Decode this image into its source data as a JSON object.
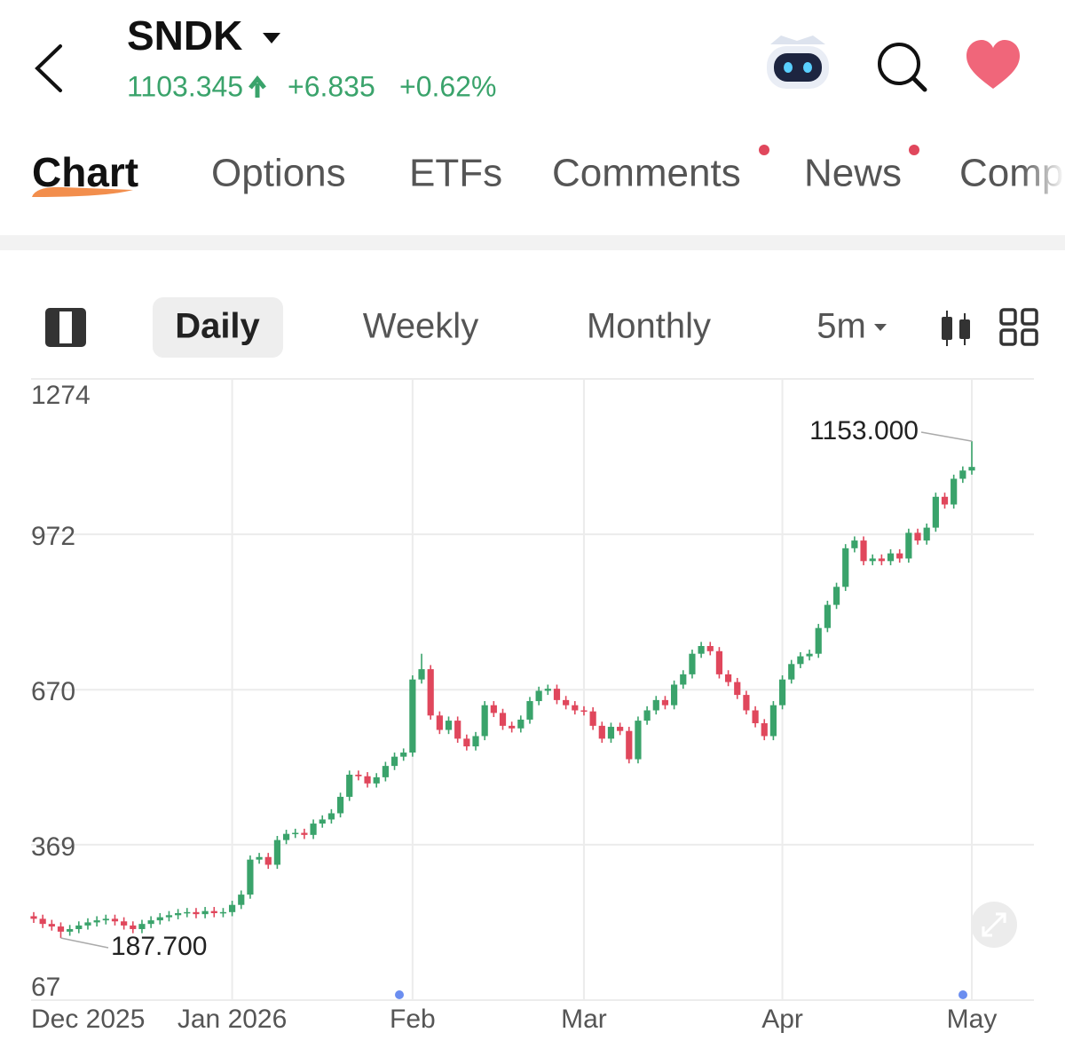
{
  "header": {
    "ticker": "SNDK",
    "price": "1103.345",
    "change": "+6.835",
    "change_pct": "+0.62%"
  },
  "tabs": [
    "Chart",
    "Options",
    "ETFs",
    "Comments",
    "News",
    "Comp"
  ],
  "periods": [
    "Daily",
    "Weekly",
    "Monthly",
    "5m"
  ],
  "chart_data": {
    "type": "candlestick",
    "categories": [
      "Dec 2025",
      null,
      null,
      null,
      null,
      null,
      null,
      null,
      null,
      null,
      null,
      null,
      null,
      null,
      null,
      null,
      null,
      null,
      null,
      null,
      null,
      null,
      "Jan 2026",
      null,
      null,
      null,
      null,
      null,
      null,
      null,
      null,
      null,
      null,
      null,
      null,
      null,
      null,
      null,
      null,
      null,
      null,
      null,
      "Feb",
      null,
      null,
      null,
      null,
      null,
      null,
      null,
      null,
      null,
      null,
      null,
      null,
      null,
      null,
      null,
      null,
      null,
      null,
      "Mar",
      null,
      null,
      null,
      null,
      null,
      null,
      null,
      null,
      null,
      null,
      null,
      null,
      null,
      null,
      null,
      null,
      null,
      null,
      null,
      null,
      null,
      "Apr",
      null,
      null,
      null,
      null,
      null,
      null,
      null,
      null,
      null,
      null,
      null,
      null,
      null,
      null,
      null,
      null,
      null,
      null,
      null,
      null,
      "May"
    ],
    "open": [
      230,
      225,
      215,
      210,
      200,
      205,
      212,
      218,
      222,
      225,
      220,
      212,
      205,
      215,
      222,
      228,
      232,
      236,
      238,
      234,
      240,
      236,
      238,
      252,
      272,
      340,
      345,
      330,
      378,
      390,
      392,
      388,
      410,
      418,
      430,
      462,
      505,
      502,
      488,
      500,
      522,
      540,
      548,
      690,
      710,
      620,
      592,
      610,
      575,
      560,
      580,
      640,
      625,
      600,
      595,
      612,
      648,
      668,
      672,
      650,
      640,
      630,
      628,
      600,
      575,
      598,
      590,
      535,
      610,
      630,
      650,
      640,
      680,
      700,
      740,
      755,
      745,
      700,
      685,
      660,
      630,
      605,
      580,
      640,
      690,
      720,
      735,
      740,
      790,
      835,
      870,
      945,
      960,
      920,
      925,
      920,
      935,
      925,
      975,
      960,
      985,
      1045,
      1030,
      1080,
      1096
    ],
    "high": [
      238,
      233,
      223,
      218,
      213,
      220,
      226,
      230,
      233,
      233,
      228,
      220,
      223,
      230,
      236,
      240,
      244,
      246,
      246,
      248,
      248,
      246,
      260,
      280,
      348,
      353,
      353,
      386,
      398,
      400,
      400,
      418,
      426,
      438,
      470,
      513,
      513,
      510,
      508,
      530,
      548,
      556,
      698,
      740,
      718,
      628,
      618,
      618,
      583,
      588,
      648,
      648,
      633,
      608,
      620,
      656,
      676,
      680,
      680,
      658,
      648,
      638,
      636,
      608,
      606,
      606,
      598,
      618,
      638,
      658,
      658,
      688,
      708,
      748,
      763,
      763,
      753,
      708,
      693,
      668,
      638,
      613,
      648,
      698,
      728,
      743,
      748,
      798,
      843,
      878,
      953,
      968,
      968,
      933,
      933,
      943,
      943,
      983,
      983,
      993,
      1053,
      1053,
      1088,
      1104,
      1153
    ],
    "low": [
      217,
      207,
      202,
      187.7,
      192,
      197,
      204,
      210,
      214,
      212,
      204,
      197,
      197,
      207,
      214,
      220,
      224,
      228,
      226,
      226,
      228,
      228,
      230,
      244,
      264,
      332,
      322,
      322,
      370,
      382,
      380,
      380,
      402,
      410,
      422,
      454,
      494,
      480,
      480,
      492,
      514,
      532,
      540,
      682,
      612,
      584,
      584,
      567,
      552,
      552,
      572,
      617,
      592,
      587,
      587,
      604,
      640,
      660,
      642,
      632,
      622,
      620,
      592,
      567,
      567,
      582,
      527,
      527,
      602,
      622,
      632,
      632,
      672,
      692,
      732,
      737,
      692,
      677,
      652,
      622,
      597,
      572,
      572,
      632,
      682,
      712,
      727,
      732,
      782,
      827,
      862,
      937,
      912,
      912,
      912,
      912,
      917,
      917,
      952,
      952,
      977,
      1022,
      1022,
      1072,
      1088
    ],
    "close": [
      225,
      215,
      210,
      200,
      205,
      212,
      218,
      222,
      225,
      220,
      212,
      205,
      215,
      222,
      228,
      232,
      236,
      238,
      234,
      240,
      236,
      238,
      252,
      272,
      340,
      345,
      330,
      378,
      390,
      392,
      388,
      410,
      418,
      430,
      462,
      505,
      502,
      488,
      500,
      522,
      540,
      548,
      690,
      710,
      620,
      592,
      610,
      575,
      560,
      580,
      640,
      625,
      600,
      595,
      612,
      648,
      668,
      672,
      650,
      640,
      630,
      628,
      600,
      575,
      598,
      590,
      535,
      610,
      630,
      650,
      640,
      680,
      700,
      740,
      755,
      745,
      700,
      685,
      660,
      630,
      605,
      580,
      640,
      690,
      720,
      735,
      740,
      790,
      835,
      870,
      945,
      960,
      920,
      925,
      920,
      935,
      925,
      975,
      960,
      985,
      1045,
      1030,
      1080,
      1096,
      1103
    ],
    "up_color": "#3aa36b",
    "down_color": "#e0475c",
    "ylim": [
      67,
      1274
    ],
    "yticks": [
      67,
      369,
      670,
      972,
      1274
    ],
    "grid": true,
    "annotations": [
      "1153.000",
      "187.700"
    ]
  }
}
